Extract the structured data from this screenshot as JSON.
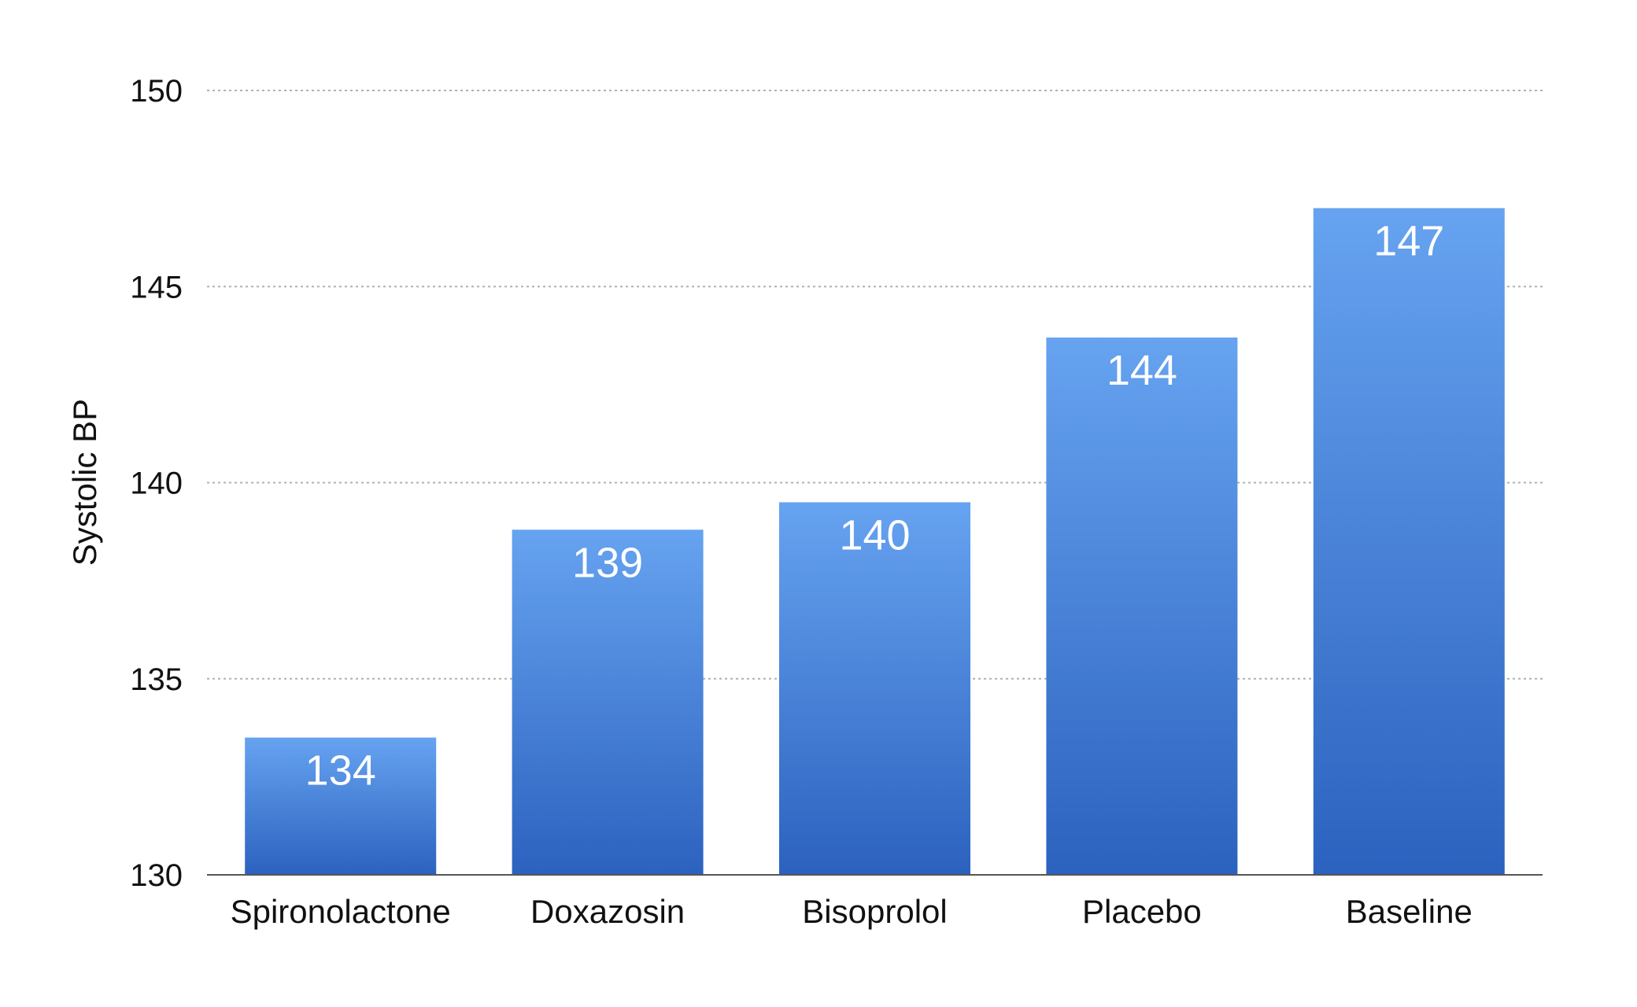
{
  "chart_data": {
    "type": "bar",
    "title": "",
    "xlabel": "",
    "ylabel": "Systolic BP",
    "categories": [
      "Spironolactone",
      "Doxazosin",
      "Bisoprolol",
      "Placebo",
      "Baseline"
    ],
    "values": [
      133.5,
      138.8,
      139.5,
      143.7,
      147
    ],
    "value_labels": [
      "134",
      "139",
      "140",
      "144",
      "147"
    ],
    "ylim": [
      130,
      150
    ],
    "yticks": [
      130,
      135,
      140,
      145,
      150
    ],
    "ytick_labels": [
      "130",
      "135",
      "140",
      "145",
      "150"
    ],
    "grid": "horizontal dotted",
    "legend": "none",
    "colors": {
      "bar_top": "#66a3f0",
      "bar_bottom": "#2c62bf",
      "grid": "#b0b0b0",
      "axis": "#555555"
    }
  }
}
